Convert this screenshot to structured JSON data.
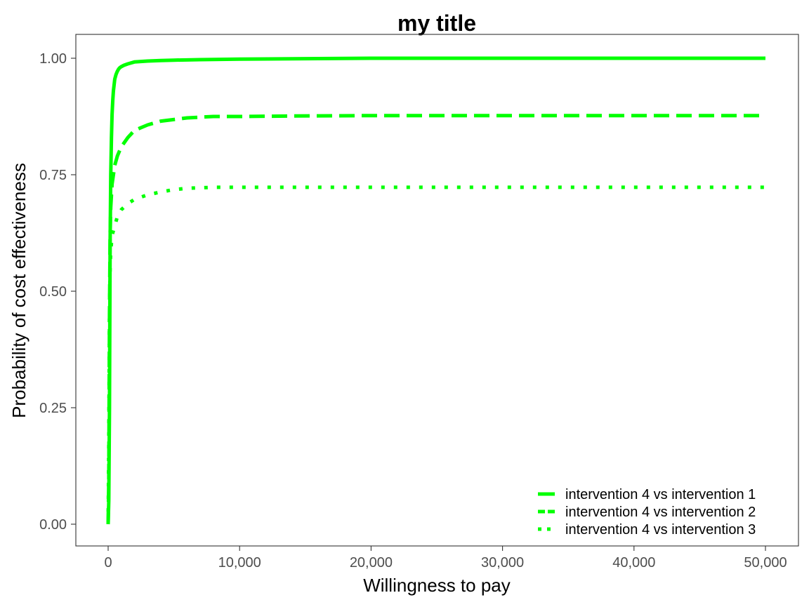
{
  "chart_data": {
    "type": "line",
    "title": "my title",
    "xlabel": "Willingness to pay",
    "ylabel": "Probability of cost effectiveness",
    "xlim": [
      0,
      50000
    ],
    "ylim": [
      0,
      1
    ],
    "x_ticks": [
      0,
      10000,
      20000,
      30000,
      40000,
      50000
    ],
    "x_tick_labels": [
      "0",
      "10,000",
      "20,000",
      "30,000",
      "40,000",
      "50,000"
    ],
    "y_ticks": [
      0,
      0.25,
      0.5,
      0.75,
      1.0
    ],
    "y_tick_labels": [
      "0.00",
      "0.25",
      "0.50",
      "0.75",
      "1.00"
    ],
    "grid": false,
    "legend_position": "bottom-right",
    "line_color": "#00ff00",
    "series": [
      {
        "name": "intervention 4 vs intervention 1",
        "line_style": "solid",
        "x": [
          0,
          50,
          100,
          150,
          200,
          250,
          300,
          350,
          400,
          500,
          600,
          700,
          800,
          900,
          1000,
          1200,
          1500,
          2000,
          3000,
          4000,
          5000,
          7000,
          10000,
          14000,
          20000,
          30000,
          40000,
          50000
        ],
        "y": [
          0.0,
          0.05,
          0.25,
          0.6,
          0.75,
          0.83,
          0.88,
          0.91,
          0.93,
          0.955,
          0.965,
          0.972,
          0.977,
          0.98,
          0.982,
          0.985,
          0.988,
          0.992,
          0.994,
          0.995,
          0.996,
          0.997,
          0.998,
          0.999,
          1.0,
          1.0,
          1.0,
          1.0
        ]
      },
      {
        "name": "intervention 4 vs intervention 2",
        "line_style": "dashed",
        "x": [
          0,
          50,
          100,
          150,
          200,
          300,
          400,
          500,
          700,
          1000,
          1500,
          2000,
          3000,
          4000,
          6000,
          8000,
          10000,
          14000,
          20000,
          30000,
          40000,
          50000
        ],
        "y": [
          0.0,
          0.1,
          0.45,
          0.62,
          0.68,
          0.73,
          0.75,
          0.77,
          0.79,
          0.81,
          0.83,
          0.845,
          0.857,
          0.865,
          0.872,
          0.875,
          0.875,
          0.876,
          0.877,
          0.877,
          0.877,
          0.877
        ]
      },
      {
        "name": "intervention 4 vs intervention 3",
        "line_style": "dotted",
        "x": [
          0,
          50,
          100,
          150,
          200,
          300,
          500,
          700,
          1000,
          1500,
          2000,
          3000,
          4000,
          5000,
          6000,
          8000,
          10000,
          15000,
          20000,
          30000,
          40000,
          50000
        ],
        "y": [
          0.0,
          0.17,
          0.45,
          0.55,
          0.585,
          0.62,
          0.64,
          0.66,
          0.675,
          0.688,
          0.697,
          0.707,
          0.713,
          0.718,
          0.721,
          0.723,
          0.723,
          0.723,
          0.723,
          0.723,
          0.723,
          0.723
        ]
      }
    ]
  }
}
